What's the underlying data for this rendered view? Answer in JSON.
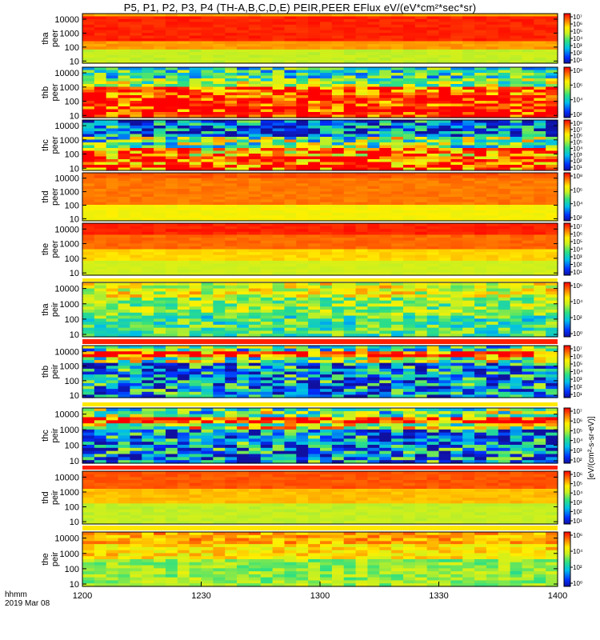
{
  "title": "P5, P1, P2, P3, P4 (TH-A,B,C,D,E) PEIR,PEER EFlux eV/(eV*cm²*sec*sr)",
  "time_caption": {
    "line1": "hhmm",
    "line2": "2019 Mar 08"
  },
  "chart_data": {
    "type": "heatmap",
    "title": "P5, P1, P2, P3, P4 (TH-A,B,C,D,E) PEIR,PEER EFlux eV/(eV*cm²*sec*sr)",
    "x": {
      "ticks": [
        "1200",
        "1230",
        "1300",
        "1330",
        "1400"
      ],
      "range": [
        "1200",
        "1400"
      ],
      "label": "hhmm"
    },
    "y_scale": "log",
    "colormap": "rainbow (blue-green-yellow-red)",
    "colorbar_label": "[eV/(cm²-s-sr-eV)]",
    "panels": [
      {
        "ylabel": [
          "tha",
          "peer"
        ],
        "yticks": [
          "10",
          "100",
          "1000",
          "10000"
        ],
        "cticks": [
          "10⁷",
          "10⁶",
          "10⁵",
          "10⁴",
          "10³",
          "10²",
          "10¹"
        ]
      },
      {
        "ylabel": [
          "thb",
          "peer"
        ],
        "yticks": [
          "10",
          "100",
          "1000",
          "10000"
        ],
        "cticks": [
          "10⁸",
          "10⁶",
          "10⁴",
          "10²"
        ]
      },
      {
        "ylabel": [
          "thc",
          "peer"
        ],
        "yticks": [
          "10",
          "100",
          "1000",
          "10000"
        ],
        "cticks": [
          "10⁸",
          "10⁷",
          "10⁶",
          "10⁵",
          "10⁴",
          "10³",
          "10²",
          "10¹"
        ]
      },
      {
        "ylabel": [
          "thd",
          "peer"
        ],
        "yticks": [
          "10",
          "100",
          "1000",
          "10000"
        ],
        "cticks": [
          "10⁸",
          "10⁶",
          "10⁴",
          "10²"
        ]
      },
      {
        "ylabel": [
          "the",
          "peer"
        ],
        "yticks": [
          "10",
          "100",
          "1000",
          "10000"
        ],
        "cticks": [
          "10⁷",
          "10⁶",
          "10⁵",
          "10⁴",
          "10³",
          "10²",
          "10¹"
        ]
      },
      {
        "ylabel": [
          "tha",
          "peir"
        ],
        "yticks": [
          "10",
          "100",
          "1000",
          "10000"
        ],
        "cticks": [
          "10⁶",
          "10⁴",
          "10²",
          "10⁰"
        ]
      },
      {
        "ylabel": [
          "thb",
          "peir"
        ],
        "yticks": [
          "10",
          "100",
          "1000",
          "10000"
        ],
        "cticks": [
          "10⁷",
          "10⁶",
          "10⁵",
          "10⁴",
          "10³",
          "10²",
          "10¹"
        ]
      },
      {
        "ylabel": [
          "thc",
          "peir"
        ],
        "yticks": [
          "10",
          "100",
          "1000",
          "10000"
        ],
        "cticks": [
          "10⁷",
          "10⁶",
          "10⁵",
          "10⁴",
          "10³",
          "10²"
        ]
      },
      {
        "ylabel": [
          "thd",
          "peir"
        ],
        "yticks": [
          "10",
          "100",
          "1000",
          "10000"
        ],
        "cticks": [
          "10⁶",
          "10⁵",
          "10⁴",
          "10³",
          "10²",
          "10¹"
        ]
      },
      {
        "ylabel": [
          "the",
          "peir"
        ],
        "yticks": [
          "10",
          "100",
          "1000",
          "10000"
        ],
        "cticks": [
          "10⁶",
          "10⁴",
          "10²",
          "10⁰"
        ]
      }
    ],
    "grid": false,
    "legend": "colorbar right"
  }
}
